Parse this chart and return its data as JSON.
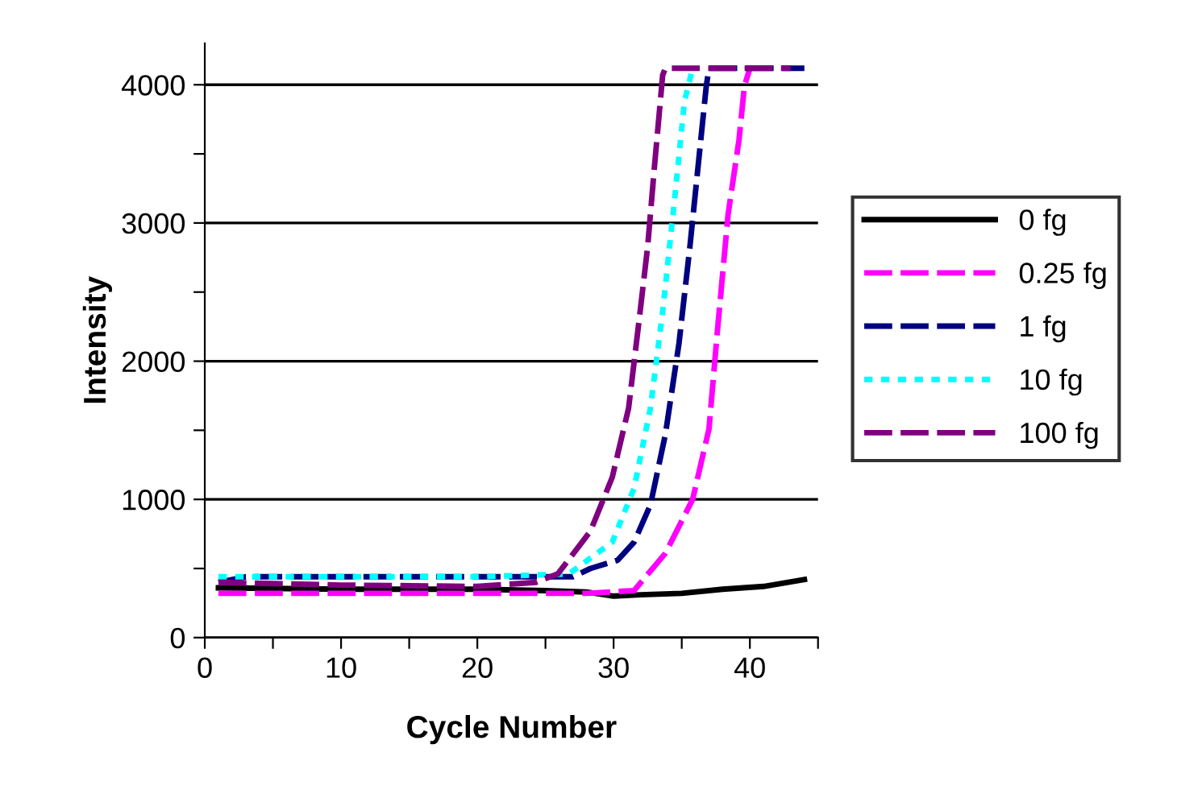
{
  "chart_data": {
    "type": "line",
    "xlabel": "Cycle Number",
    "ylabel": "Intensity",
    "xlim": [
      0,
      45
    ],
    "ylim": [
      0,
      4300
    ],
    "xticks": [
      0,
      {
        "value": 5,
        "label": null
      },
      10,
      {
        "value": 15,
        "label": null
      },
      20,
      {
        "value": 25,
        "label": null
      },
      30,
      {
        "value": 35,
        "label": null
      },
      40,
      {
        "value": 45,
        "label": null
      }
    ],
    "yticks": [
      0,
      {
        "value": 500,
        "label": null
      },
      1000,
      {
        "value": 1500,
        "label": null
      },
      2000,
      {
        "value": 2500,
        "label": null
      },
      3000,
      {
        "value": 3500,
        "label": null
      },
      4000
    ],
    "grid": "y",
    "legend": "right",
    "marker": "none",
    "series": [
      {
        "name": "0 fg",
        "color": "#000000",
        "line_style": "solid",
        "x": [
          1,
          10,
          20,
          25,
          28,
          30,
          32,
          35,
          38,
          41,
          44
        ],
        "values": [
          360,
          350,
          350,
          340,
          330,
          300,
          310,
          320,
          350,
          370,
          420
        ]
      },
      {
        "name": "0.25 fg",
        "color": "#ff00ff",
        "line_style": "dashed",
        "x": [
          1,
          10,
          20,
          28,
          31.5,
          33.8,
          35.8,
          37,
          37.6,
          38.4,
          39.2,
          39.6,
          40
        ],
        "values": [
          320,
          320,
          320,
          320,
          340,
          610,
          1000,
          1510,
          2200,
          3060,
          3600,
          3990,
          4120
        ]
      },
      {
        "name": "1 fg",
        "color": "#000080",
        "line_style": "dashed",
        "x": [
          1,
          3,
          10,
          20,
          27,
          28.3,
          30.3,
          31.5,
          32.7,
          33.8,
          34.8,
          35.6,
          36.2,
          36.8,
          37,
          44
        ],
        "values": [
          400,
          440,
          440,
          440,
          440,
          500,
          560,
          690,
          960,
          1470,
          2130,
          2830,
          3410,
          3990,
          4120,
          4120
        ]
      },
      {
        "name": "10 fg",
        "color": "#00ffff",
        "line_style": "dotted",
        "x": [
          1,
          10,
          20,
          26.7,
          29.9,
          31.5,
          32.7,
          33.6,
          34.4,
          35.2,
          35.8
        ],
        "values": [
          440,
          440,
          440,
          460,
          690,
          1080,
          1660,
          2360,
          3100,
          3880,
          4120
        ]
      },
      {
        "name": "100 fg",
        "color": "#800080",
        "line_style": "dashed",
        "x": [
          1,
          10,
          20,
          24.3,
          25.9,
          28.3,
          29.9,
          31.1,
          31.9,
          32.5,
          33,
          33.6,
          33.8,
          43
        ],
        "values": [
          400,
          380,
          370,
          400,
          460,
          770,
          1160,
          1660,
          2320,
          2830,
          3410,
          4070,
          4120,
          4120
        ]
      }
    ]
  }
}
